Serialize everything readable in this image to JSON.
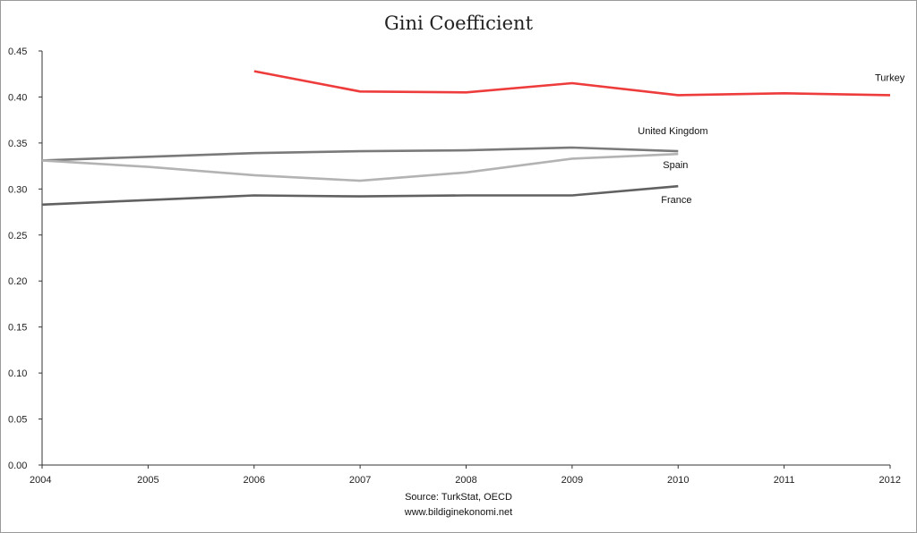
{
  "chart_data": {
    "type": "line",
    "title": "Gini Coefficient",
    "x": [
      "2004",
      "2005",
      "2006",
      "2007",
      "2008",
      "2009",
      "2010",
      "2011",
      "2012"
    ],
    "ylim": [
      0,
      0.45
    ],
    "yticks": [
      "0.00",
      "0.05",
      "0.10",
      "0.15",
      "0.20",
      "0.25",
      "0.30",
      "0.35",
      "0.40",
      "0.45"
    ],
    "grid": false,
    "series": [
      {
        "name": "Turkey",
        "color": "#ee3b3b",
        "values": [
          null,
          null,
          0.428,
          0.406,
          0.405,
          0.415,
          0.402,
          0.404,
          0.402
        ]
      },
      {
        "name": "United Kingdom",
        "color": "#7a7a7a",
        "values": [
          0.331,
          0.335,
          0.339,
          0.341,
          0.342,
          0.345,
          0.341,
          null,
          null
        ]
      },
      {
        "name": "Spain",
        "color": "#b3b3b3",
        "values": [
          0.331,
          0.324,
          0.315,
          0.309,
          0.318,
          0.333,
          0.338,
          null,
          null
        ]
      },
      {
        "name": "France",
        "color": "#616161",
        "values": [
          0.283,
          0.288,
          0.293,
          0.292,
          0.293,
          0.293,
          0.303,
          null,
          null
        ]
      }
    ]
  },
  "footer": {
    "source": "Source: TurkStat, OECD",
    "website": "www.bildiginekonomi.net"
  }
}
